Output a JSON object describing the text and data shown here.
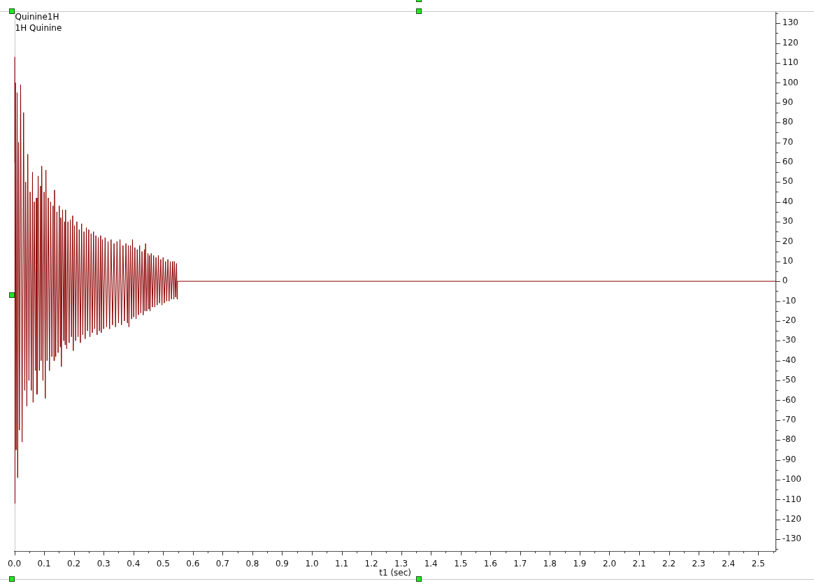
{
  "chart_data": {
    "type": "line",
    "title": "Quinine1H",
    "subtitle": "1H Quinine",
    "xlabel": "t1 (sec)",
    "color": "#8b0000",
    "x": [
      0,
      0.001,
      0.002,
      0.0035,
      0.006,
      0.0094,
      0.011,
      0.014,
      0.017,
      0.021,
      0.026,
      0.031,
      0.035,
      0.038,
      0.042,
      0.045,
      0.049,
      0.053,
      0.057,
      0.061,
      0.063,
      0.067,
      0.071,
      0.074,
      0.076,
      0.08,
      0.084,
      0.088,
      0.09,
      0.092,
      0.096,
      0.1,
      0.104,
      0.106,
      0.11,
      0.114,
      0.118,
      0.122,
      0.126,
      0.13,
      0.133,
      0.135,
      0.139,
      0.143,
      0.147,
      0.151,
      0.154,
      0.156,
      0.158,
      0.162,
      0.166,
      0.169,
      0.1705,
      0.172,
      0.176,
      0.18,
      0.184,
      0.188,
      0.192,
      0.196,
      0.198,
      0.202,
      0.206,
      0.21,
      0.214,
      0.218,
      0.222,
      0.226,
      0.23,
      0.234,
      0.238,
      0.242,
      0.246,
      0.25,
      0.254,
      0.258,
      0.262,
      0.266,
      0.27,
      0.274,
      0.278,
      0.282,
      0.286,
      0.29,
      0.292,
      0.296,
      0.3,
      0.305,
      0.31,
      0.315,
      0.32,
      0.325,
      0.33,
      0.335,
      0.34,
      0.345,
      0.35,
      0.355,
      0.36,
      0.365,
      0.37,
      0.375,
      0.38,
      0.383,
      0.385,
      0.39,
      0.394,
      0.397,
      0.401,
      0.405,
      0.409,
      0.413,
      0.417,
      0.421,
      0.425,
      0.429,
      0.433,
      0.437,
      0.439,
      0.441,
      0.445,
      0.449,
      0.452,
      0.454,
      0.456,
      0.46,
      0.464,
      0.468,
      0.472,
      0.476,
      0.48,
      0.484,
      0.488,
      0.492,
      0.496,
      0.5,
      0.504,
      0.508,
      0.512,
      0.516,
      0.52,
      0.524,
      0.528,
      0.532,
      0.536,
      0.538,
      0.542,
      0.545,
      0.547,
      0.548,
      2.56
    ],
    "values": [
      60,
      113,
      -112,
      100,
      -85,
      95,
      -99,
      70,
      -75,
      99,
      -81,
      85,
      -55,
      50,
      -63,
      64,
      -50,
      45,
      -55,
      55,
      -61,
      40,
      -45,
      42,
      -57,
      53,
      -45,
      48,
      -40,
      58,
      -50,
      45,
      -59,
      56,
      -40,
      42,
      -45,
      40,
      -38,
      38,
      -40,
      46,
      -38,
      35,
      -36,
      38,
      -33,
      32,
      -43,
      36,
      -30,
      30,
      -32,
      36,
      -34,
      30,
      -31,
      31,
      -28,
      33,
      -35,
      28,
      -30,
      30,
      -28,
      26,
      -31,
      29,
      -27,
      25,
      -29,
      27,
      -25,
      26,
      -28,
      24,
      -26,
      25,
      -24,
      23,
      -27,
      22,
      -25,
      23,
      -26,
      21,
      -24,
      22,
      -23,
      20,
      -24,
      21,
      -22,
      19,
      -23,
      20,
      -21,
      21,
      -22,
      18,
      -20,
      19,
      -21,
      18,
      -23,
      18,
      -19,
      21,
      -18,
      17,
      -19,
      16,
      -17,
      18,
      -16,
      15,
      -17,
      16,
      -15,
      19,
      -15,
      14,
      -14,
      13,
      -15,
      14,
      -13,
      13,
      -13,
      12,
      -12,
      13,
      -11,
      11,
      -12,
      12,
      -11,
      10,
      -10,
      11,
      -10,
      10,
      -9,
      10,
      -9,
      10,
      -8,
      9,
      -9,
      0,
      0
    ],
    "xlim": [
      0,
      2.56
    ],
    "xticks": [
      {
        "value": 0,
        "label": "0.0"
      },
      {
        "value": 0.05,
        "label": null
      },
      0.1,
      {
        "value": 0.15,
        "label": null
      },
      0.2,
      {
        "value": 0.25,
        "label": null
      },
      0.3,
      {
        "value": 0.35,
        "label": null
      },
      0.4,
      {
        "value": 0.45,
        "label": null
      },
      0.5,
      {
        "value": 0.55,
        "label": null
      },
      0.6,
      {
        "value": 0.65,
        "label": null
      },
      0.7,
      {
        "value": 0.75,
        "label": null
      },
      0.8,
      {
        "value": 0.85,
        "label": null
      },
      0.9,
      {
        "value": 0.95,
        "label": null
      },
      {
        "value": 1,
        "label": "1.0"
      },
      {
        "value": 1.05,
        "label": null
      },
      1.1,
      {
        "value": 1.15,
        "label": null
      },
      1.2,
      {
        "value": 1.25,
        "label": null
      },
      1.3,
      {
        "value": 1.35,
        "label": null
      },
      1.4,
      {
        "value": 1.45,
        "label": null
      },
      1.5,
      {
        "value": 1.55,
        "label": null
      },
      1.6,
      {
        "value": 1.65,
        "label": null
      },
      1.7,
      {
        "value": 1.75,
        "label": null
      },
      1.8,
      {
        "value": 1.85,
        "label": null
      },
      1.9,
      {
        "value": 1.95,
        "label": null
      },
      {
        "value": 2,
        "label": "2.0"
      },
      {
        "value": 2.05,
        "label": null
      },
      2.1,
      {
        "value": 2.15,
        "label": null
      },
      2.2,
      {
        "value": 2.25,
        "label": null
      },
      2.3,
      {
        "value": 2.35,
        "label": null
      },
      2.4,
      {
        "value": 2.45,
        "label": null
      },
      2.5,
      {
        "value": 2.55,
        "label": null
      }
    ],
    "ylim": [
      -136,
      136
    ],
    "yticks": [
      {
        "value": -135,
        "label": null
      },
      -130,
      {
        "value": -125,
        "label": null
      },
      -120,
      {
        "value": -115,
        "label": null
      },
      -110,
      {
        "value": -105,
        "label": null
      },
      -100,
      {
        "value": -95,
        "label": null
      },
      -90,
      {
        "value": -85,
        "label": null
      },
      -80,
      {
        "value": -75,
        "label": null
      },
      -70,
      {
        "value": -65,
        "label": null
      },
      -60,
      {
        "value": -55,
        "label": null
      },
      -50,
      {
        "value": -45,
        "label": null
      },
      -40,
      {
        "value": -35,
        "label": null
      },
      -30,
      {
        "value": -25,
        "label": null
      },
      -20,
      {
        "value": -15,
        "label": null
      },
      -10,
      {
        "value": -5,
        "label": null
      },
      0,
      {
        "value": 5,
        "label": null
      },
      10,
      {
        "value": 15,
        "label": null
      },
      20,
      {
        "value": 25,
        "label": null
      },
      30,
      {
        "value": 35,
        "label": null
      },
      40,
      {
        "value": 45,
        "label": null
      },
      50,
      {
        "value": 55,
        "label": null
      },
      60,
      {
        "value": 65,
        "label": null
      },
      70,
      {
        "value": 75,
        "label": null
      },
      80,
      {
        "value": 85,
        "label": null
      },
      90,
      {
        "value": 95,
        "label": null
      },
      100,
      {
        "value": 105,
        "label": null
      },
      110,
      {
        "value": 115,
        "label": null
      },
      120,
      {
        "value": 125,
        "label": null
      },
      130,
      {
        "value": 135,
        "label": null
      }
    ]
  }
}
